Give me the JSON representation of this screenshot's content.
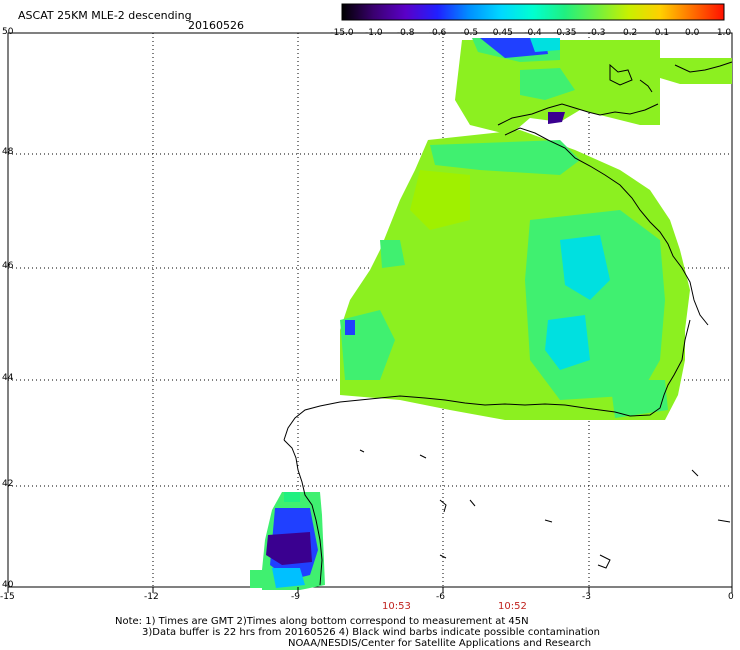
{
  "header": {
    "title": "ASCAT 25KM MLE-2 descending",
    "date": "20160526"
  },
  "colorbar": {
    "labels": [
      "-15.0",
      "-1.0",
      "-0.8",
      "-0.6",
      "-0.5",
      "-0.45",
      "-0.4",
      "-0.35",
      "-0.3",
      "-0.2",
      "-0.1",
      "0.0",
      "1.0"
    ],
    "colors": [
      "#000000",
      "#3a0070",
      "#5a00c8",
      "#2020ff",
      "#0090ff",
      "#00d8ff",
      "#00ffd0",
      "#20f080",
      "#70f040",
      "#c8f000",
      "#ffd000",
      "#ff7000",
      "#ff1000"
    ]
  },
  "axes": {
    "lon_ticks": [
      "-15",
      "-12",
      "-9",
      "-6",
      "-3",
      "0"
    ],
    "lat_ticks": [
      "50",
      "48",
      "46",
      "44",
      "42",
      "40"
    ]
  },
  "times": [
    "10:53",
    "10:52"
  ],
  "notes": [
    "Note: 1) Times are GMT 2)Times along bottom correspond to measurement at 45N",
    "3)Data buffer is 22 hrs from 20160526 4) Black wind barbs indicate possible contamination",
    "NOAA/NESDIS/Center for Satellite Applications and Research"
  ],
  "map_colors": {
    "main_green": "#8cf020",
    "light_green": "#a0f000",
    "mid_green": "#40f070",
    "cyan": "#00e0e0",
    "blue": "#2040ff",
    "purple": "#3a0090"
  }
}
